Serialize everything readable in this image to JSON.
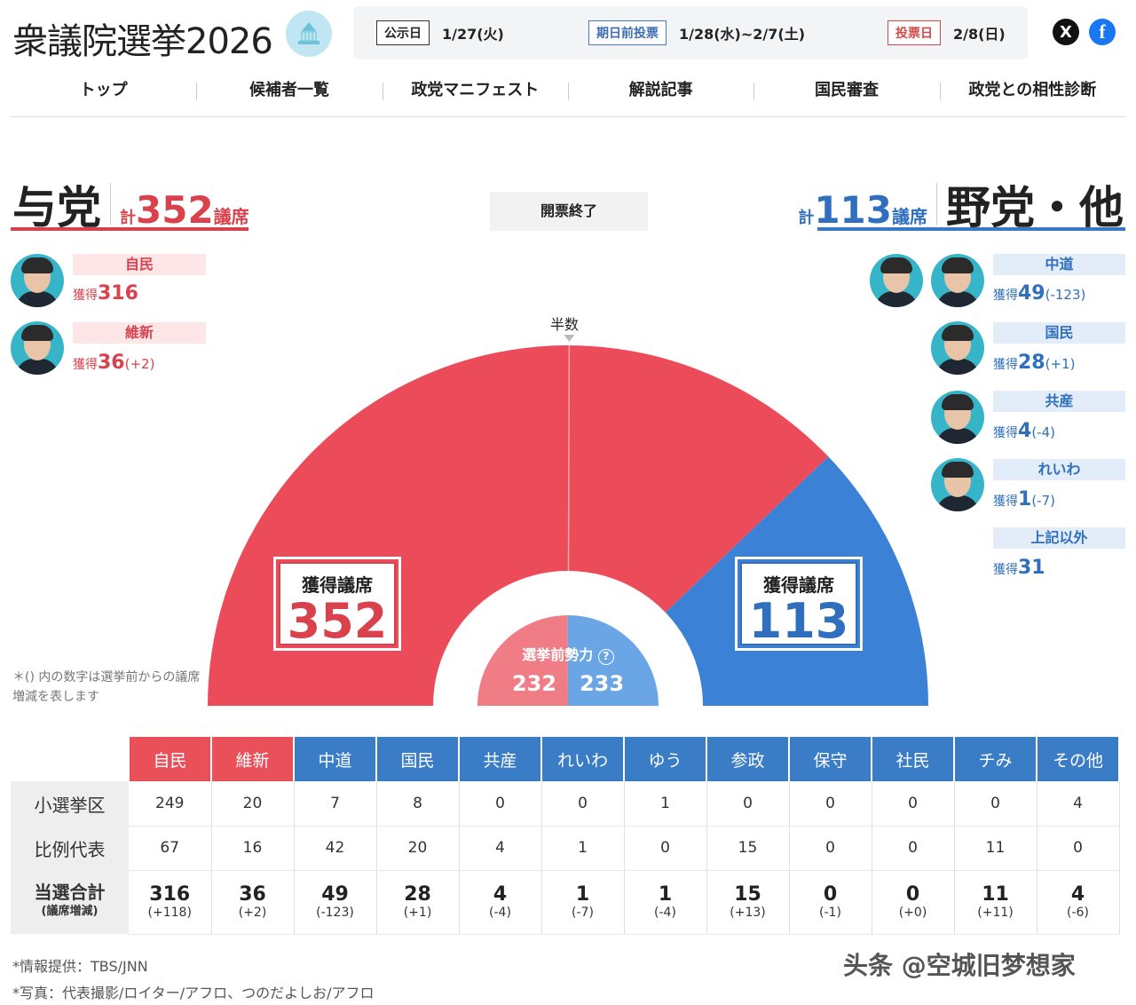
{
  "header": {
    "title": "衆議院選挙2026",
    "dates": [
      {
        "tag": "公示日",
        "value": "1/27(火)",
        "color": "black"
      },
      {
        "tag": "期日前投票",
        "value": "1/28(水)~2/7(土)",
        "color": "blue"
      },
      {
        "tag": "投票日",
        "value": "2/8(日)",
        "color": "red"
      }
    ],
    "social": {
      "x": "X",
      "facebook": "f"
    }
  },
  "nav": [
    "トップ",
    "候補者一覧",
    "政党マニフェスト",
    "解説記事",
    "国民審査",
    "政党との相性診断"
  ],
  "ruling": {
    "label": "与党",
    "kei": "計",
    "total": "352",
    "unit": "議席"
  },
  "opposition": {
    "label": "野党・他",
    "kei": "計",
    "total": "113",
    "unit": "議席"
  },
  "status": "開票終了",
  "gain_label": "獲得",
  "ruling_parties": [
    {
      "name": "自民",
      "seats": "316",
      "diff": ""
    },
    {
      "name": "維新",
      "seats": "36",
      "diff": "(+2)"
    }
  ],
  "opposition_parties": [
    {
      "name": "中道",
      "seats": "49",
      "diff": "(-123)"
    },
    {
      "name": "国民",
      "seats": "28",
      "diff": "(+1)"
    },
    {
      "name": "共産",
      "seats": "4",
      "diff": "(-4)"
    },
    {
      "name": "れいわ",
      "seats": "1",
      "diff": "(-7)"
    },
    {
      "name": "上記以外",
      "seats": "31",
      "diff": ""
    }
  ],
  "chart": {
    "half_label": "半数",
    "seat_label": "獲得議席",
    "pre_label": "選挙前勢力",
    "pre_help_icon": "?",
    "note": "＊() 内の数字は選挙前からの議席増減を表します"
  },
  "chart_data": {
    "type": "pie",
    "title": "獲得議席",
    "shape": "semicircle",
    "total_seats": 465,
    "majority": 233,
    "series": [
      {
        "name": "与党",
        "value": 352,
        "color": "#ec4c5a"
      },
      {
        "name": "野党・他",
        "value": 113,
        "color": "#3b82d6"
      }
    ],
    "pre_election": [
      {
        "name": "与党",
        "value": 232,
        "color": "#f07c86"
      },
      {
        "name": "野党・他",
        "value": 233,
        "color": "#6aa6e6"
      }
    ]
  },
  "table": {
    "columns": [
      {
        "name": "自民",
        "side": "red"
      },
      {
        "name": "維新",
        "side": "red"
      },
      {
        "name": "中道",
        "side": "blue"
      },
      {
        "name": "国民",
        "side": "blue"
      },
      {
        "name": "共産",
        "side": "blue"
      },
      {
        "name": "れいわ",
        "side": "blue"
      },
      {
        "name": "ゆう",
        "side": "blue"
      },
      {
        "name": "参政",
        "side": "blue"
      },
      {
        "name": "保守",
        "side": "blue"
      },
      {
        "name": "社民",
        "side": "blue"
      },
      {
        "name": "チみ",
        "side": "blue"
      },
      {
        "name": "その他",
        "side": "blue"
      }
    ],
    "rows": [
      {
        "label": "小選挙区",
        "values": [
          "249",
          "20",
          "7",
          "8",
          "0",
          "0",
          "1",
          "0",
          "0",
          "0",
          "0",
          "4"
        ]
      },
      {
        "label": "比例代表",
        "values": [
          "67",
          "16",
          "42",
          "20",
          "4",
          "1",
          "0",
          "15",
          "0",
          "0",
          "11",
          "0"
        ]
      }
    ],
    "total_label": "当選合計",
    "total_sub": "(議席増減)",
    "totals": [
      "316",
      "36",
      "49",
      "28",
      "4",
      "1",
      "1",
      "15",
      "0",
      "0",
      "11",
      "4"
    ],
    "total_diffs": [
      "(+118)",
      "(+2)",
      "(-123)",
      "(+1)",
      "(-4)",
      "(-7)",
      "(-4)",
      "(+13)",
      "(-1)",
      "(+0)",
      "(+11)",
      "(-6)"
    ]
  },
  "credits": [
    "*情報提供：TBS/JNN",
    "*写真：代表撮影/ロイター/アフロ、つのだよしお/アフロ"
  ],
  "watermark": "头条 @空城旧梦想家"
}
